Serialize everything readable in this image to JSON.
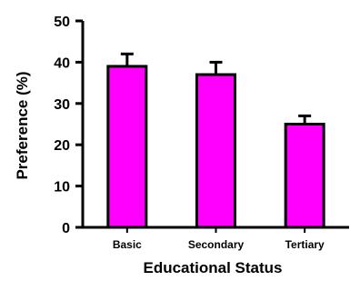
{
  "chart_data": {
    "type": "bar",
    "title": "",
    "xlabel": "Educational Status",
    "ylabel": "Preference (%)",
    "categories": [
      "Basic",
      "Secondary",
      "Tertiary"
    ],
    "values": [
      39,
      37,
      25
    ],
    "error_upper": [
      42,
      40,
      27
    ],
    "ylim": [
      0,
      50
    ],
    "yticks": [
      0,
      10,
      20,
      30,
      40,
      50
    ],
    "grid": false,
    "bar_color": "#ff00ff",
    "edge_color": "#000000"
  }
}
